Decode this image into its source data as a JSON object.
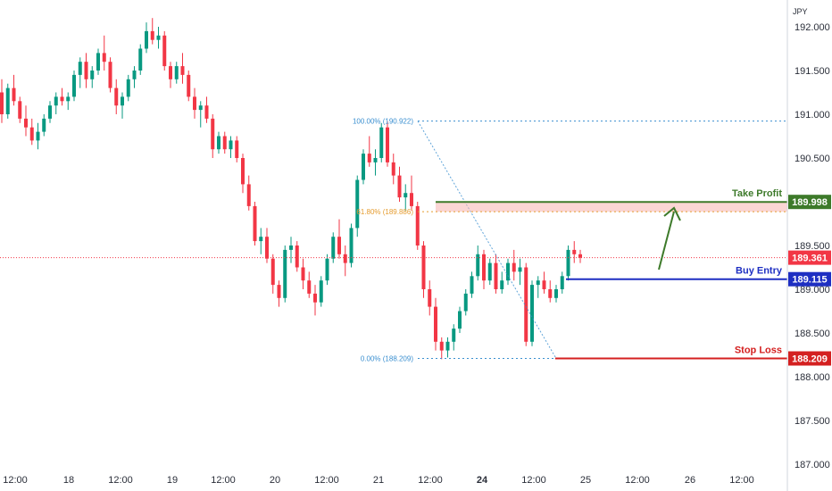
{
  "chart_data": {
    "type": "candlestick",
    "currency": "JPY",
    "ylim": [
      187.0,
      192.2
    ],
    "y_ticks": [
      "192.000",
      "191.500",
      "191.000",
      "190.500",
      "190.000",
      "189.500",
      "189.000",
      "188.500",
      "188.000",
      "187.500",
      "187.000"
    ],
    "y_tick_values": [
      192.0,
      191.5,
      191.0,
      190.5,
      190.0,
      189.5,
      189.0,
      188.5,
      188.0,
      187.5,
      187.0
    ],
    "x_ticks": [
      "12:00",
      "18",
      "12:00",
      "19",
      "12:00",
      "20",
      "12:00",
      "21",
      "12:00",
      "24",
      "12:00",
      "25",
      "12:00",
      "26",
      "12:00"
    ],
    "x_tick_bold": [
      false,
      false,
      false,
      false,
      false,
      false,
      false,
      false,
      false,
      true,
      false,
      false,
      false,
      false,
      false
    ],
    "grid": false,
    "current_price": {
      "value": 189.361,
      "label": "189.361",
      "color": "#f23645"
    },
    "levels": [
      {
        "name": "Take Profit",
        "value": 189.998,
        "label": "189.998",
        "color": "#3d7a2a"
      },
      {
        "name": "Buy Entry",
        "value": 189.115,
        "label": "189.115",
        "color": "#1e2fc2"
      },
      {
        "name": "Stop Loss",
        "value": 188.209,
        "label": "188.209",
        "color": "#d42020"
      }
    ],
    "fibonacci": [
      {
        "label": "100.00% (190.922)",
        "value": 190.922,
        "color": "#3a8fd0"
      },
      {
        "label": "61.80% (189.886)",
        "value": 189.886,
        "color": "#e59c2f"
      },
      {
        "label": "0.00% (188.209)",
        "value": 188.209,
        "color": "#3a8fd0"
      }
    ],
    "colors": {
      "up": "#089981",
      "down": "#f23645"
    },
    "candles": [
      [
        191.25,
        191.4,
        190.9,
        191.0
      ],
      [
        191.0,
        191.35,
        190.95,
        191.3
      ],
      [
        191.3,
        191.45,
        191.1,
        191.15
      ],
      [
        191.15,
        191.2,
        190.9,
        190.95
      ],
      [
        190.95,
        191.1,
        190.75,
        190.85
      ],
      [
        190.85,
        190.95,
        190.65,
        190.7
      ],
      [
        190.7,
        190.9,
        190.6,
        190.8
      ],
      [
        190.8,
        191.0,
        190.75,
        190.95
      ],
      [
        190.95,
        191.15,
        190.9,
        191.1
      ],
      [
        191.1,
        191.25,
        191.0,
        191.2
      ],
      [
        191.2,
        191.3,
        191.1,
        191.15
      ],
      [
        191.15,
        191.25,
        191.05,
        191.2
      ],
      [
        191.2,
        191.5,
        191.15,
        191.45
      ],
      [
        191.45,
        191.65,
        191.3,
        191.6
      ],
      [
        191.6,
        191.7,
        191.3,
        191.4
      ],
      [
        191.4,
        191.55,
        191.3,
        191.5
      ],
      [
        191.5,
        191.75,
        191.45,
        191.7
      ],
      [
        191.7,
        191.9,
        191.5,
        191.6
      ],
      [
        191.6,
        191.65,
        191.25,
        191.3
      ],
      [
        191.3,
        191.4,
        191.0,
        191.1
      ],
      [
        191.1,
        191.25,
        190.95,
        191.2
      ],
      [
        191.2,
        191.45,
        191.15,
        191.4
      ],
      [
        191.4,
        191.55,
        191.3,
        191.5
      ],
      [
        191.5,
        191.8,
        191.45,
        191.75
      ],
      [
        191.75,
        192.05,
        191.7,
        191.95
      ],
      [
        191.95,
        192.1,
        191.8,
        191.85
      ],
      [
        191.85,
        192.0,
        191.75,
        191.9
      ],
      [
        191.9,
        191.95,
        191.5,
        191.55
      ],
      [
        191.55,
        191.6,
        191.3,
        191.4
      ],
      [
        191.4,
        191.6,
        191.35,
        191.55
      ],
      [
        191.55,
        191.7,
        191.35,
        191.45
      ],
      [
        191.45,
        191.5,
        191.15,
        191.2
      ],
      [
        191.2,
        191.3,
        190.95,
        191.05
      ],
      [
        191.05,
        191.15,
        190.85,
        191.1
      ],
      [
        191.1,
        191.2,
        190.9,
        190.95
      ],
      [
        190.95,
        191.0,
        190.5,
        190.6
      ],
      [
        190.6,
        190.8,
        190.55,
        190.75
      ],
      [
        190.75,
        190.8,
        190.55,
        190.6
      ],
      [
        190.6,
        190.75,
        190.5,
        190.7
      ],
      [
        190.7,
        190.75,
        190.45,
        190.5
      ],
      [
        190.5,
        190.55,
        190.1,
        190.2
      ],
      [
        190.2,
        190.3,
        189.9,
        189.95
      ],
      [
        189.95,
        190.0,
        189.5,
        189.55
      ],
      [
        189.55,
        189.7,
        189.4,
        189.6
      ],
      [
        189.6,
        189.7,
        189.3,
        189.35
      ],
      [
        189.35,
        189.4,
        188.95,
        189.05
      ],
      [
        189.05,
        189.1,
        188.8,
        188.9
      ],
      [
        188.9,
        189.5,
        188.85,
        189.45
      ],
      [
        189.45,
        189.6,
        189.3,
        189.5
      ],
      [
        189.5,
        189.55,
        189.2,
        189.25
      ],
      [
        189.25,
        189.35,
        189.0,
        189.1
      ],
      [
        189.1,
        189.2,
        188.9,
        188.95
      ],
      [
        188.95,
        189.05,
        188.7,
        188.85
      ],
      [
        188.85,
        189.15,
        188.8,
        189.1
      ],
      [
        189.1,
        189.4,
        189.05,
        189.35
      ],
      [
        189.35,
        189.65,
        189.3,
        189.6
      ],
      [
        189.6,
        189.8,
        189.35,
        189.4
      ],
      [
        189.4,
        189.5,
        189.15,
        189.3
      ],
      [
        189.3,
        189.75,
        189.25,
        189.7
      ],
      [
        189.7,
        190.3,
        189.6,
        190.25
      ],
      [
        190.25,
        190.6,
        190.2,
        190.55
      ],
      [
        190.55,
        190.75,
        190.4,
        190.45
      ],
      [
        190.45,
        190.6,
        190.3,
        190.5
      ],
      [
        190.5,
        190.9,
        190.45,
        190.85
      ],
      [
        190.85,
        190.92,
        190.4,
        190.45
      ],
      [
        190.45,
        190.55,
        190.2,
        190.3
      ],
      [
        190.3,
        190.4,
        190.0,
        190.05
      ],
      [
        190.05,
        190.2,
        189.9,
        190.1
      ],
      [
        190.1,
        190.3,
        189.9,
        189.95
      ],
      [
        189.95,
        190.0,
        189.45,
        189.5
      ],
      [
        189.5,
        189.55,
        188.9,
        189.0
      ],
      [
        189.0,
        189.1,
        188.7,
        188.8
      ],
      [
        188.8,
        188.9,
        188.3,
        188.4
      ],
      [
        188.4,
        188.45,
        188.2,
        188.3
      ],
      [
        188.3,
        188.45,
        188.22,
        188.4
      ],
      [
        188.4,
        188.6,
        188.3,
        188.55
      ],
      [
        188.55,
        188.8,
        188.5,
        188.75
      ],
      [
        188.75,
        189.0,
        188.7,
        188.95
      ],
      [
        188.95,
        189.2,
        188.9,
        189.15
      ],
      [
        189.15,
        189.5,
        189.1,
        189.4
      ],
      [
        189.4,
        189.45,
        189.0,
        189.1
      ],
      [
        189.1,
        189.35,
        189.05,
        189.3
      ],
      [
        189.3,
        189.4,
        188.95,
        189.0
      ],
      [
        189.0,
        189.2,
        188.95,
        189.1
      ],
      [
        189.1,
        189.35,
        189.05,
        189.3
      ],
      [
        189.3,
        189.45,
        189.1,
        189.2
      ],
      [
        189.2,
        189.35,
        189.05,
        189.25
      ],
      [
        189.25,
        189.3,
        188.35,
        188.4
      ],
      [
        188.4,
        189.1,
        188.35,
        189.05
      ],
      [
        189.05,
        189.15,
        188.9,
        189.1
      ],
      [
        189.1,
        189.2,
        188.95,
        189.0
      ],
      [
        189.0,
        189.1,
        188.85,
        188.9
      ],
      [
        188.9,
        189.05,
        188.85,
        189.0
      ],
      [
        189.0,
        189.2,
        188.95,
        189.15
      ],
      [
        189.15,
        189.5,
        189.1,
        189.45
      ],
      [
        189.45,
        189.55,
        189.3,
        189.4
      ],
      [
        189.4,
        189.45,
        189.3,
        189.36
      ]
    ]
  }
}
